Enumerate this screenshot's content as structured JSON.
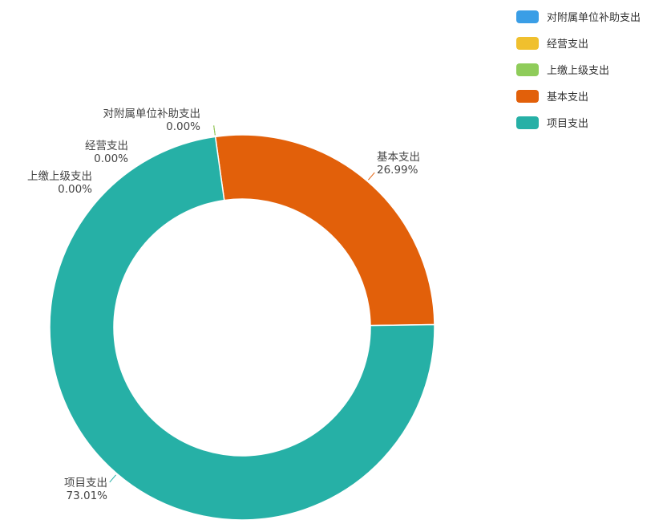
{
  "chart_data": {
    "type": "pie",
    "variant": "donut",
    "categories": [
      "对附属单位补助支出",
      "经营支出",
      "上缴上级支出",
      "基本支出",
      "项目支出"
    ],
    "values": [
      0.0,
      0.0,
      0.0,
      26.99,
      73.01
    ],
    "value_labels": [
      "0.00%",
      "0.00%",
      "0.00%",
      "26.99%",
      "73.01%"
    ],
    "colors": [
      "#3a9ee6",
      "#f0c02e",
      "#8fcc5a",
      "#e2600a",
      "#26b0a6"
    ],
    "legend_placement": "top-right"
  }
}
